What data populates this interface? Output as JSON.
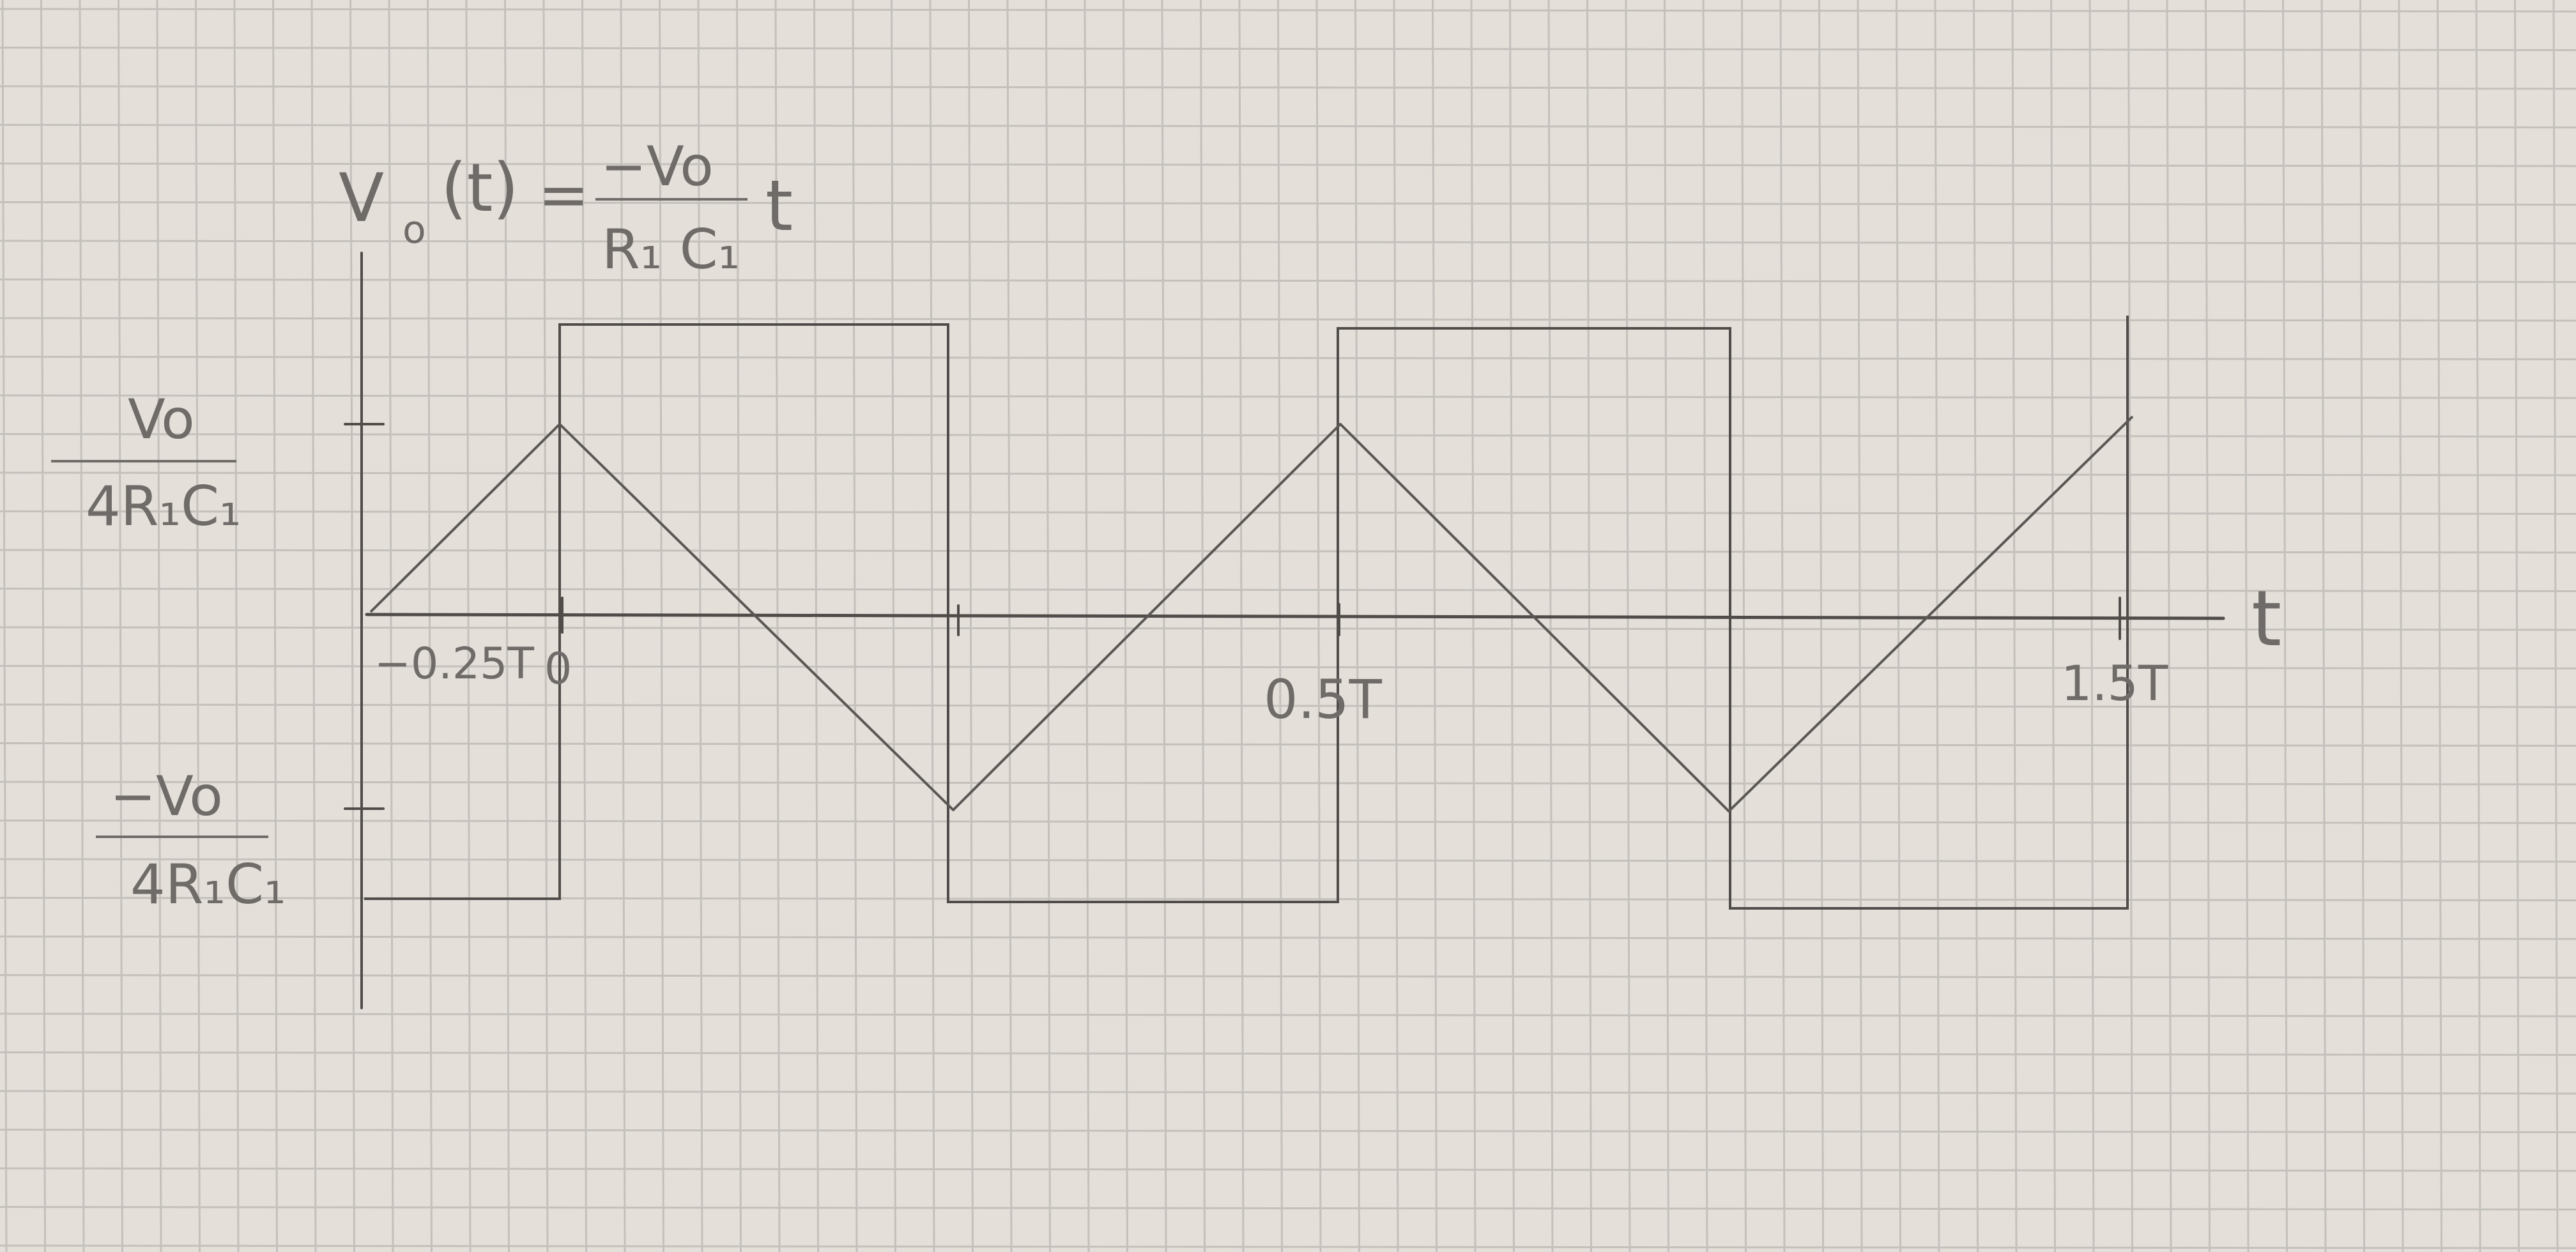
{
  "equation": {
    "lhs": "V",
    "lhs_sub": "o",
    "arg": "(t)",
    "equals": "=",
    "numerator": "−Vo",
    "denominator": "R₁ C₁",
    "var": "t"
  },
  "axes": {
    "t_label": "t"
  },
  "y_ticks": {
    "upper_numerator": "Vo",
    "upper_denominator": "4R₁C₁",
    "lower_numerator": "−Vo",
    "lower_denominator": "4R₁C₁"
  },
  "x_ticks": {
    "neg_quarter": "−0.25T",
    "zero": "0",
    "half": "0.5T",
    "one_half": "1.5T"
  },
  "colors": {
    "paper": "#e3ddd6",
    "grid": "#c4c0bc",
    "pencil": "#4f4c4a",
    "pencil_light": "#6f6b68"
  }
}
